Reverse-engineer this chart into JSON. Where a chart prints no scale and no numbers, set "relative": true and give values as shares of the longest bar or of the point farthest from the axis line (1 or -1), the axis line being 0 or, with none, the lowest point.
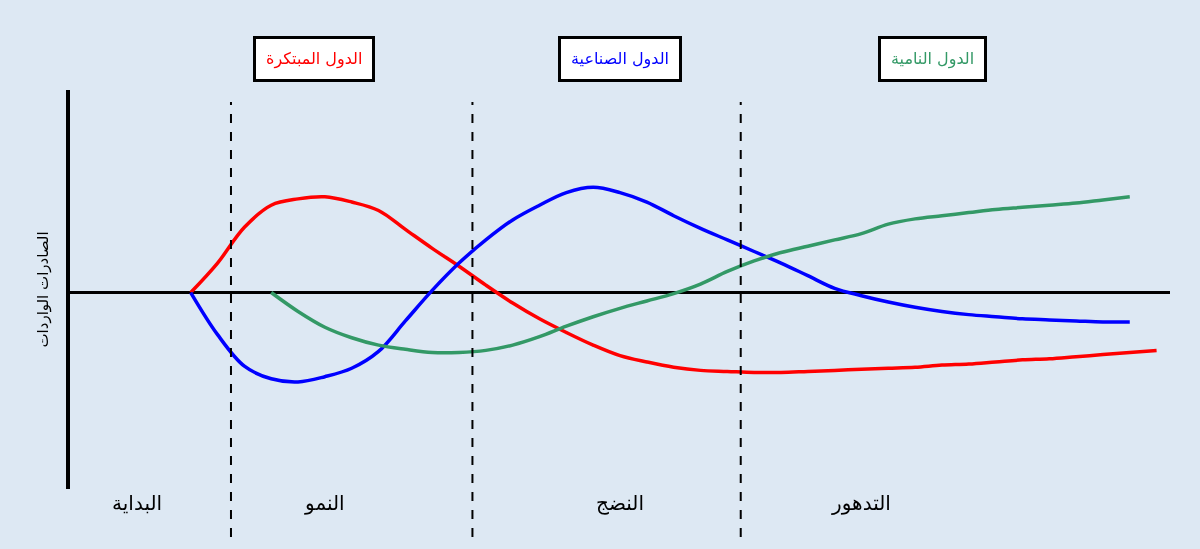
{
  "chart_data": {
    "type": "line",
    "relative": true,
    "ylabel": "الصادرات الواردات",
    "categories": [
      null,
      null,
      "البداية",
      null,
      null,
      null,
      null,
      null,
      null,
      "النمو",
      null,
      null,
      null,
      null,
      null,
      null,
      null,
      null,
      null,
      null,
      "النضج",
      null,
      null,
      null,
      null,
      null,
      null,
      null,
      null,
      "التدهور",
      null,
      null,
      null,
      null,
      null,
      null,
      null,
      null,
      null,
      null,
      null
    ],
    "tick_labels": "x",
    "grid": false,
    "legend": false,
    "marker": "none",
    "line_style": "solid",
    "series": [
      {
        "name": "الدول المبتكرة",
        "color": "#ff0000",
        "values": [
          null,
          null,
          null,
          null,
          0,
          0.28,
          0.62,
          0.83,
          0.89,
          0.91,
          0.86,
          0.78,
          0.6,
          0.42,
          0.25,
          0.07,
          -0.1,
          -0.25,
          -0.38,
          -0.5,
          -0.6,
          -0.66,
          -0.71,
          -0.74,
          -0.75,
          -0.76,
          -0.76,
          -0.75,
          -0.74,
          -0.73,
          -0.72,
          -0.71,
          -0.69,
          -0.68,
          -0.66,
          -0.64,
          -0.63,
          -0.61,
          -0.59,
          -0.57,
          -0.55
        ]
      },
      {
        "name": "الدول الصناعية",
        "color": "#0000ff",
        "values": [
          null,
          null,
          null,
          null,
          0,
          -0.4,
          -0.7,
          -0.82,
          -0.85,
          -0.8,
          -0.72,
          -0.56,
          -0.27,
          0.02,
          0.28,
          0.5,
          0.69,
          0.83,
          0.95,
          1.0,
          0.95,
          0.86,
          0.73,
          0.61,
          0.5,
          0.39,
          0.28,
          0.16,
          0.04,
          -0.03,
          -0.09,
          -0.14,
          -0.18,
          -0.21,
          -0.23,
          -0.25,
          -0.26,
          -0.27,
          -0.28,
          -0.28,
          null
        ]
      },
      {
        "name": "الدول النامية",
        "color": "#339966",
        "values": [
          null,
          null,
          null,
          null,
          null,
          null,
          null,
          0,
          -0.18,
          -0.33,
          -0.43,
          -0.5,
          -0.54,
          -0.57,
          -0.57,
          -0.55,
          -0.5,
          -0.42,
          -0.32,
          -0.23,
          -0.15,
          -0.08,
          -0.01,
          0.08,
          0.2,
          0.3,
          0.38,
          0.44,
          0.5,
          0.56,
          0.65,
          0.7,
          0.73,
          0.76,
          0.79,
          0.81,
          0.83,
          0.85,
          0.88,
          0.91,
          null
        ]
      }
    ]
  }
}
